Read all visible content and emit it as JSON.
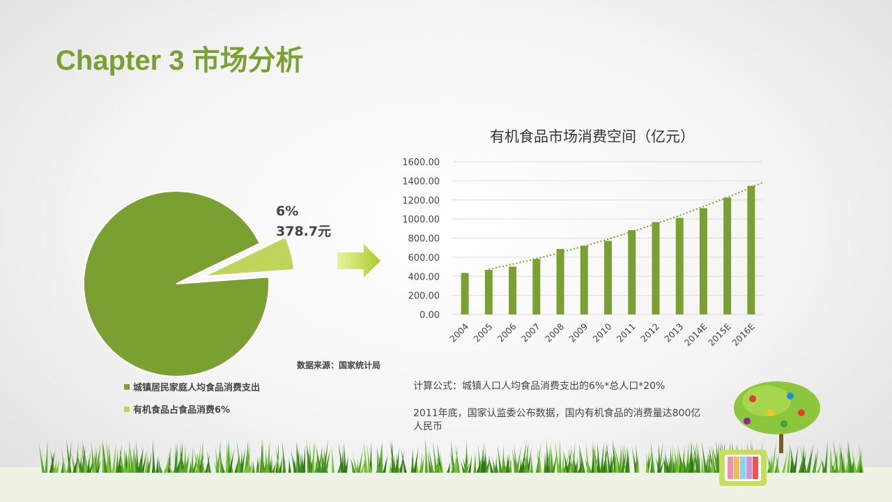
{
  "page": {
    "title": "Chapter 3 市场分析"
  },
  "pie": {
    "slices": [
      {
        "label": "城镇居民家庭人均食品消费支出",
        "value": 94,
        "color": "#7ba032"
      },
      {
        "label": "有机食品占食品消费6%",
        "value": 6,
        "color": "#bcd55a"
      }
    ],
    "callout_percent": "6%",
    "callout_value": "378.7元",
    "source": "数据来源：国家统计局"
  },
  "chart_data": {
    "type": "bar",
    "title": "有机食品市场消费空间（亿元）",
    "categories": [
      "2004",
      "2005",
      "2006",
      "2007",
      "2008",
      "2009",
      "2010",
      "2011",
      "2012",
      "2013",
      "2014E",
      "2015E",
      "2016E"
    ],
    "values": [
      435,
      467,
      501,
      581,
      686,
      720,
      771,
      883,
      968,
      1012,
      1114,
      1224,
      1348
    ],
    "ylim": [
      0,
      1600
    ],
    "yticks": [
      "0.00",
      "200.00",
      "400.00",
      "600.00",
      "800.00",
      "1000.00",
      "1200.00",
      "1400.00",
      "1600.00"
    ],
    "trendline": "polynomial, dotted",
    "grid": true,
    "color": "#7ba032"
  },
  "notes": {
    "formula": "计算公式：城镇人口人均食品消费支出的6%*总人口*20%",
    "fact": "2011年底，国家认监委公布数据，国内有机食品的消费量达800亿人民币"
  }
}
